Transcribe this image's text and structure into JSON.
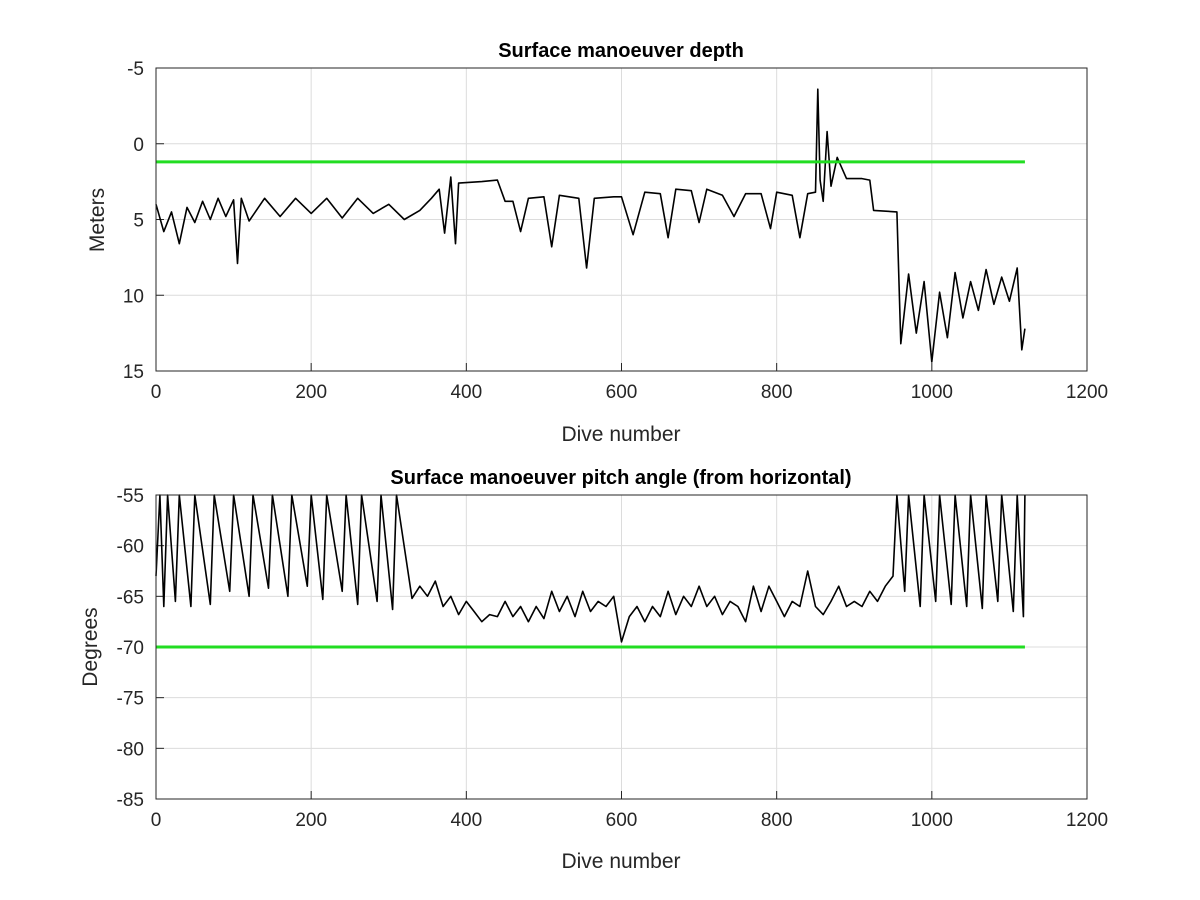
{
  "colors": {
    "series": "#000000",
    "reference": "#22dd22",
    "grid": "#dcdcdc",
    "axes": "#262626"
  },
  "chart_data": [
    {
      "type": "line",
      "title": "Surface manoeuver depth",
      "xlabel": "Dive number",
      "ylabel": "Meters",
      "xlim": [
        0,
        1200
      ],
      "ylim": [
        -5,
        15
      ],
      "y_reversed": true,
      "grid": true,
      "xticks": [
        0,
        200,
        400,
        600,
        800,
        1000,
        1200
      ],
      "yticks": [
        -5,
        0,
        5,
        10,
        15
      ],
      "reference_line": {
        "y": 1.2,
        "x": [
          0,
          1120
        ],
        "color": "#22dd22"
      },
      "series": [
        {
          "points": [
            [
              0,
              4.0
            ],
            [
              10,
              5.8
            ],
            [
              20,
              4.5
            ],
            [
              30,
              6.6
            ],
            [
              40,
              4.2
            ],
            [
              50,
              5.2
            ],
            [
              60,
              3.8
            ],
            [
              70,
              5.0
            ],
            [
              80,
              3.6
            ],
            [
              90,
              4.8
            ],
            [
              100,
              3.7
            ],
            [
              105,
              7.9
            ],
            [
              110,
              3.6
            ],
            [
              120,
              5.1
            ],
            [
              140,
              3.6
            ],
            [
              160,
              4.8
            ],
            [
              180,
              3.6
            ],
            [
              200,
              4.6
            ],
            [
              220,
              3.6
            ],
            [
              240,
              4.9
            ],
            [
              260,
              3.6
            ],
            [
              280,
              4.6
            ],
            [
              300,
              4.0
            ],
            [
              320,
              5.0
            ],
            [
              340,
              4.4
            ],
            [
              355,
              3.6
            ],
            [
              365,
              3.0
            ],
            [
              372,
              5.9
            ],
            [
              380,
              2.2
            ],
            [
              386,
              6.6
            ],
            [
              390,
              2.6
            ],
            [
              420,
              2.5
            ],
            [
              440,
              2.4
            ],
            [
              450,
              3.8
            ],
            [
              460,
              3.8
            ],
            [
              470,
              5.8
            ],
            [
              480,
              3.6
            ],
            [
              500,
              3.5
            ],
            [
              510,
              6.8
            ],
            [
              520,
              3.4
            ],
            [
              545,
              3.6
            ],
            [
              555,
              8.2
            ],
            [
              565,
              3.6
            ],
            [
              590,
              3.5
            ],
            [
              600,
              3.5
            ],
            [
              615,
              6.0
            ],
            [
              630,
              3.2
            ],
            [
              650,
              3.3
            ],
            [
              660,
              6.2
            ],
            [
              670,
              3.0
            ],
            [
              690,
              3.1
            ],
            [
              700,
              5.2
            ],
            [
              710,
              3.0
            ],
            [
              730,
              3.4
            ],
            [
              745,
              4.8
            ],
            [
              760,
              3.3
            ],
            [
              780,
              3.3
            ],
            [
              792,
              5.6
            ],
            [
              800,
              3.2
            ],
            [
              820,
              3.4
            ],
            [
              830,
              6.2
            ],
            [
              840,
              3.3
            ],
            [
              850,
              3.2
            ],
            [
              853,
              -3.6
            ],
            [
              856,
              2.4
            ],
            [
              860,
              3.8
            ],
            [
              865,
              -0.8
            ],
            [
              870,
              2.8
            ],
            [
              878,
              0.9
            ],
            [
              890,
              2.3
            ],
            [
              910,
              2.3
            ],
            [
              920,
              2.4
            ],
            [
              925,
              4.4
            ],
            [
              955,
              4.5
            ],
            [
              960,
              13.2
            ],
            [
              970,
              8.6
            ],
            [
              980,
              12.5
            ],
            [
              990,
              9.1
            ],
            [
              1000,
              14.4
            ],
            [
              1010,
              9.8
            ],
            [
              1020,
              12.8
            ],
            [
              1030,
              8.5
            ],
            [
              1040,
              11.5
            ],
            [
              1050,
              9.1
            ],
            [
              1060,
              11.0
            ],
            [
              1070,
              8.3
            ],
            [
              1080,
              10.6
            ],
            [
              1090,
              8.8
            ],
            [
              1100,
              10.4
            ],
            [
              1110,
              8.2
            ],
            [
              1116,
              13.6
            ],
            [
              1120,
              12.2
            ]
          ]
        }
      ]
    },
    {
      "type": "line",
      "title": "Surface manoeuver pitch angle (from horizontal)",
      "xlabel": "Dive number",
      "ylabel": "Degrees",
      "xlim": [
        0,
        1200
      ],
      "ylim": [
        -85,
        -55
      ],
      "grid": true,
      "xticks": [
        0,
        200,
        400,
        600,
        800,
        1000,
        1200
      ],
      "yticks": [
        -55,
        -60,
        -65,
        -70,
        -75,
        -80,
        -85
      ],
      "reference_line": {
        "y": -70,
        "x": [
          0,
          1120
        ],
        "color": "#22dd22"
      },
      "series": [
        {
          "points": [
            [
              0,
              -63.0
            ],
            [
              5,
              -55
            ],
            [
              10,
              -66.0
            ],
            [
              15,
              -55
            ],
            [
              25,
              -65.5
            ],
            [
              30,
              -55
            ],
            [
              45,
              -66.0
            ],
            [
              50,
              -55
            ],
            [
              70,
              -65.8
            ],
            [
              75,
              -55
            ],
            [
              95,
              -64.5
            ],
            [
              100,
              -55
            ],
            [
              120,
              -65.0
            ],
            [
              125,
              -55
            ],
            [
              145,
              -64.2
            ],
            [
              150,
              -55
            ],
            [
              170,
              -65.0
            ],
            [
              175,
              -55
            ],
            [
              195,
              -64.0
            ],
            [
              200,
              -55
            ],
            [
              215,
              -65.3
            ],
            [
              220,
              -55
            ],
            [
              240,
              -64.5
            ],
            [
              245,
              -55
            ],
            [
              260,
              -65.8
            ],
            [
              265,
              -55
            ],
            [
              285,
              -65.5
            ],
            [
              290,
              -55
            ],
            [
              305,
              -66.3
            ],
            [
              310,
              -55
            ],
            [
              330,
              -65.2
            ],
            [
              340,
              -64.0
            ],
            [
              350,
              -65.0
            ],
            [
              360,
              -63.5
            ],
            [
              370,
              -66.0
            ],
            [
              380,
              -65.0
            ],
            [
              390,
              -66.8
            ],
            [
              400,
              -65.5
            ],
            [
              410,
              -66.5
            ],
            [
              420,
              -67.5
            ],
            [
              430,
              -66.8
            ],
            [
              440,
              -67.0
            ],
            [
              450,
              -65.5
            ],
            [
              460,
              -67.0
            ],
            [
              470,
              -66.0
            ],
            [
              480,
              -67.5
            ],
            [
              490,
              -66.0
            ],
            [
              500,
              -67.2
            ],
            [
              510,
              -64.5
            ],
            [
              520,
              -66.5
            ],
            [
              530,
              -65.0
            ],
            [
              540,
              -67.0
            ],
            [
              550,
              -64.5
            ],
            [
              560,
              -66.5
            ],
            [
              570,
              -65.5
            ],
            [
              580,
              -66.0
            ],
            [
              590,
              -65.0
            ],
            [
              600,
              -69.5
            ],
            [
              610,
              -67.0
            ],
            [
              620,
              -66.0
            ],
            [
              630,
              -67.5
            ],
            [
              640,
              -66.0
            ],
            [
              650,
              -67.0
            ],
            [
              660,
              -64.5
            ],
            [
              670,
              -66.8
            ],
            [
              680,
              -65.0
            ],
            [
              690,
              -66.0
            ],
            [
              700,
              -64.0
            ],
            [
              710,
              -66.0
            ],
            [
              720,
              -65.0
            ],
            [
              730,
              -66.8
            ],
            [
              740,
              -65.5
            ],
            [
              750,
              -66.0
            ],
            [
              760,
              -67.5
            ],
            [
              770,
              -64.0
            ],
            [
              780,
              -66.5
            ],
            [
              790,
              -64.0
            ],
            [
              800,
              -65.5
            ],
            [
              810,
              -67.0
            ],
            [
              820,
              -65.5
            ],
            [
              830,
              -66.0
            ],
            [
              840,
              -62.5
            ],
            [
              850,
              -66.0
            ],
            [
              860,
              -66.8
            ],
            [
              870,
              -65.5
            ],
            [
              880,
              -64.0
            ],
            [
              890,
              -66.0
            ],
            [
              900,
              -65.5
            ],
            [
              910,
              -66.0
            ],
            [
              920,
              -64.5
            ],
            [
              930,
              -65.5
            ],
            [
              940,
              -64.0
            ],
            [
              950,
              -63.0
            ],
            [
              955,
              -55
            ],
            [
              965,
              -64.5
            ],
            [
              970,
              -55
            ],
            [
              985,
              -66.0
            ],
            [
              990,
              -55
            ],
            [
              1005,
              -65.5
            ],
            [
              1010,
              -55
            ],
            [
              1025,
              -65.8
            ],
            [
              1030,
              -55
            ],
            [
              1045,
              -66.0
            ],
            [
              1050,
              -55
            ],
            [
              1065,
              -66.2
            ],
            [
              1070,
              -55
            ],
            [
              1085,
              -65.5
            ],
            [
              1090,
              -55
            ],
            [
              1105,
              -66.5
            ],
            [
              1110,
              -55
            ],
            [
              1118,
              -67.0
            ],
            [
              1120,
              -55
            ]
          ]
        }
      ]
    }
  ]
}
